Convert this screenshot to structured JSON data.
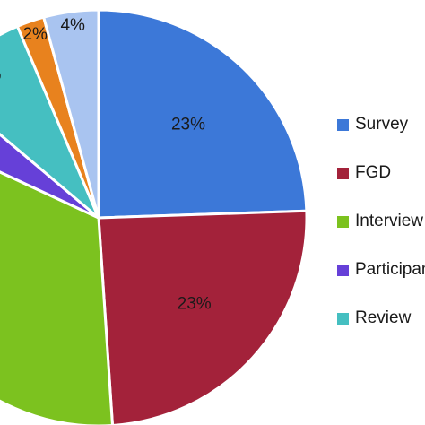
{
  "chart_data": {
    "type": "pie",
    "slices": [
      {
        "name": "Survey",
        "value": 23,
        "label": "23%",
        "color": "#3c78d8"
      },
      {
        "name": "FGD",
        "value": 23,
        "label": "23%",
        "color": "#a3223a"
      },
      {
        "name": "Interview",
        "value": 31,
        "label": "",
        "color": "#7cc21f"
      },
      {
        "name": "Participant",
        "value": 4,
        "label": "",
        "color": "#6640d8"
      },
      {
        "name": "Review",
        "value": 7,
        "label": "%",
        "color": "#45bfc1"
      },
      {
        "name": "",
        "value": 2,
        "label": "2%",
        "color": "#e8821e"
      },
      {
        "name": "",
        "value": 4,
        "label": "4%",
        "color": "#a9c4f0"
      }
    ],
    "legend": {
      "position": "right",
      "entries": [
        "Survey",
        "FGD",
        "Interview",
        "Participant",
        "Review"
      ]
    }
  }
}
